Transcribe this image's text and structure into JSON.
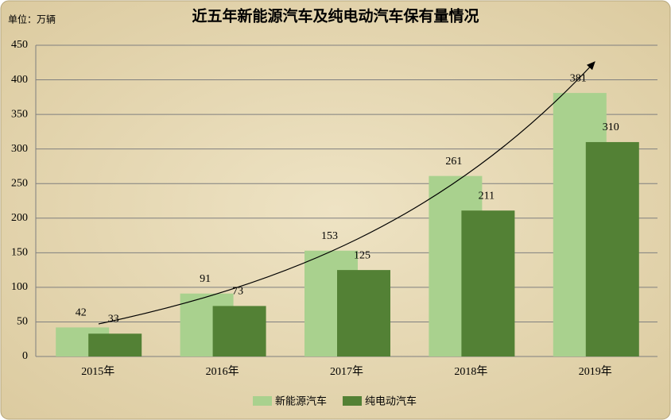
{
  "chart_data": {
    "type": "bar",
    "title": "近五年新能源汽车及纯电动汽车保有量情况",
    "y_label": "单位：万辆",
    "categories": [
      "2015年",
      "2016年",
      "2017年",
      "2018年",
      "2019年"
    ],
    "series": [
      {
        "name": "新能源汽车",
        "color": "#a9d18e",
        "values": [
          42,
          91,
          153,
          261,
          381
        ]
      },
      {
        "name": "纯电动汽车",
        "color": "#538135",
        "values": [
          33,
          73,
          125,
          211,
          310
        ]
      }
    ],
    "ylim": [
      0,
      450
    ],
    "yticks": [
      0,
      50,
      100,
      150,
      200,
      250,
      300,
      350,
      400,
      450
    ],
    "grid": true,
    "legend": "bottom"
  }
}
